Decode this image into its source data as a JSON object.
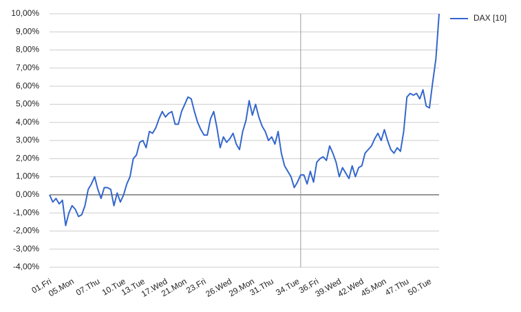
{
  "chart_data": {
    "type": "line",
    "categories": [
      "01.Fri",
      null,
      null,
      null,
      null,
      null,
      null,
      "05.Mon",
      null,
      null,
      null,
      null,
      null,
      null,
      null,
      "07.Thu",
      null,
      null,
      null,
      null,
      null,
      null,
      null,
      "10.Tue",
      null,
      null,
      null,
      null,
      null,
      "13.Tue",
      null,
      null,
      null,
      null,
      null,
      null,
      "17.Wed",
      null,
      null,
      null,
      null,
      null,
      "21.Mon",
      null,
      null,
      null,
      null,
      null,
      "23.Fri",
      null,
      null,
      null,
      null,
      null,
      null,
      null,
      "26.Wed",
      null,
      null,
      null,
      null,
      null,
      null,
      "29.Mon",
      null,
      null,
      null,
      null,
      null,
      "31.Thu",
      null,
      null,
      null,
      null,
      null,
      null,
      null,
      "34.Tue",
      null,
      null,
      null,
      null,
      null,
      "36.Fri",
      null,
      null,
      null,
      null,
      null,
      null,
      "39.Wed",
      null,
      null,
      null,
      null,
      null,
      null,
      "42.Wed",
      null,
      null,
      null,
      null,
      null,
      null,
      "45.Mon",
      null,
      null,
      null,
      null,
      null,
      null,
      "47.Thu",
      null,
      null,
      null,
      null,
      null,
      null,
      "50.Tue",
      null,
      null,
      null
    ],
    "series": [
      {
        "name": "DAX [10]",
        "color": "#3366cc",
        "values": [
          0,
          -0.4,
          -0.2,
          -0.5,
          -0.3,
          -1.7,
          -1.0,
          -0.6,
          -0.8,
          -1.2,
          -1.1,
          -0.6,
          0.3,
          0.6,
          1.0,
          0.3,
          -0.2,
          0.4,
          0.4,
          0.3,
          -0.6,
          0.1,
          -0.4,
          0.0,
          0.6,
          1.0,
          2.0,
          2.2,
          2.9,
          3.0,
          2.6,
          3.5,
          3.4,
          3.7,
          4.2,
          4.6,
          4.3,
          4.5,
          4.6,
          3.9,
          3.9,
          4.6,
          5.0,
          5.4,
          5.3,
          4.6,
          4.0,
          3.6,
          3.3,
          3.3,
          4.2,
          4.6,
          3.7,
          2.6,
          3.2,
          2.9,
          3.1,
          3.4,
          2.8,
          2.5,
          3.5,
          4.1,
          5.2,
          4.4,
          5.0,
          4.3,
          3.8,
          3.5,
          3.0,
          3.2,
          2.8,
          3.5,
          2.3,
          1.6,
          1.3,
          1.0,
          0.4,
          0.7,
          1.1,
          1.1,
          0.6,
          1.3,
          0.7,
          1.8,
          2.0,
          2.1,
          1.9,
          2.7,
          2.3,
          1.8,
          1.0,
          1.5,
          1.2,
          0.9,
          1.6,
          1.0,
          1.5,
          1.6,
          2.3,
          2.5,
          2.7,
          3.1,
          3.4,
          3.0,
          3.6,
          3.0,
          2.5,
          2.3,
          2.6,
          2.4,
          3.5,
          5.4,
          5.6,
          5.5,
          5.6,
          5.3,
          5.8,
          4.9,
          4.8,
          6.2,
          7.5,
          10.0
        ]
      }
    ],
    "ylim": [
      -4,
      10
    ],
    "yticks": [
      {
        "value": -4,
        "label": "-4,00%"
      },
      {
        "value": -3,
        "label": "-3,00%"
      },
      {
        "value": -2,
        "label": "-2,00%"
      },
      {
        "value": -1,
        "label": "-1,00%"
      },
      {
        "value": 0,
        "label": "0,00%"
      },
      {
        "value": 1,
        "label": "1,00%"
      },
      {
        "value": 2,
        "label": "2,00%"
      },
      {
        "value": 3,
        "label": "3,00%"
      },
      {
        "value": 4,
        "label": "4,00%"
      },
      {
        "value": 5,
        "label": "5,00%"
      },
      {
        "value": 6,
        "label": "6,00%"
      },
      {
        "value": 7,
        "label": "7,00%"
      },
      {
        "value": 8,
        "label": "8,00%"
      },
      {
        "value": 9,
        "label": "9,00%"
      },
      {
        "value": 10,
        "label": "10,00%"
      }
    ],
    "grid": true,
    "legend": "right",
    "vline_index": 78
  }
}
